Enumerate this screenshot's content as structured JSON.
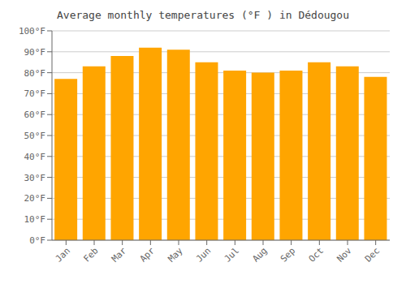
{
  "chart_data": {
    "type": "bar",
    "title": "Average monthly temperatures (°F ) in Dédougou",
    "categories": [
      "Jan",
      "Feb",
      "Mar",
      "Apr",
      "May",
      "Jun",
      "Jul",
      "Aug",
      "Sep",
      "Oct",
      "Nov",
      "Dec"
    ],
    "values": [
      77,
      83,
      88,
      92,
      91,
      85,
      81,
      80,
      81,
      85,
      83,
      78
    ],
    "color": "#FFA500",
    "ylim": [
      0,
      100
    ],
    "yticks": [
      {
        "value": 0,
        "label": "0°F"
      },
      {
        "value": 10,
        "label": "10°F"
      },
      {
        "value": 20,
        "label": "20°F"
      },
      {
        "value": 30,
        "label": "30°F"
      },
      {
        "value": 40,
        "label": "40°F"
      },
      {
        "value": 50,
        "label": "50°F"
      },
      {
        "value": 60,
        "label": "60°F"
      },
      {
        "value": 70,
        "label": "70°F"
      },
      {
        "value": 80,
        "label": "80°F"
      },
      {
        "value": 90,
        "label": "90°F"
      },
      {
        "value": 100,
        "label": "100°F"
      }
    ],
    "grid": true
  }
}
